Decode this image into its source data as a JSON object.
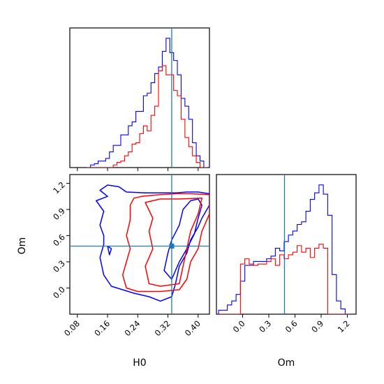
{
  "chart_data": [
    {
      "type": "histogram",
      "panel": "H0 marginal",
      "bins": [
        0.11,
        0.12,
        0.13,
        0.14,
        0.15,
        0.16,
        0.17,
        0.18,
        0.19,
        0.2,
        0.21,
        0.22,
        0.23,
        0.24,
        0.25,
        0.26,
        0.27,
        0.28,
        0.29,
        0.3,
        0.31,
        0.32,
        0.33,
        0.34,
        0.35,
        0.36,
        0.37,
        0.38,
        0.39,
        0.4,
        0.41,
        0.42
      ],
      "series": [
        {
          "color": "#0000ff",
          "values": [
            0,
            0.02,
            0.03,
            0.05,
            0.05,
            0.07,
            0.12,
            0.17,
            0.17,
            0.25,
            0.25,
            0.32,
            0.35,
            0.43,
            0.43,
            0.55,
            0.57,
            0.65,
            0.72,
            0.77,
            0.89,
            0.99,
            0.88,
            0.82,
            0.71,
            0.53,
            0.47,
            0.37,
            0.19,
            0.09,
            0.05,
            0.0
          ]
        },
        {
          "color": "#ff0000",
          "values": [
            0,
            0,
            0,
            0,
            0,
            0,
            0,
            0.02,
            0.04,
            0.05,
            0.09,
            0.12,
            0.18,
            0.19,
            0.26,
            0.32,
            0.28,
            0.4,
            0.47,
            0.74,
            0.78,
            0.71,
            0.71,
            0.59,
            0.55,
            0.37,
            0.23,
            0.16,
            0.09,
            0.04,
            0,
            0
          ]
        }
      ],
      "marker_line": {
        "x": 0.33,
        "color": "#1f77b4"
      },
      "xlim": [
        0.06,
        0.43
      ]
    },
    {
      "type": "contour",
      "panel": "H0 vs Om",
      "xlabel": "H0",
      "ylabel": "Om",
      "xticks": [
        "0.08",
        "0.16",
        "0.24",
        "0.32",
        "0.40"
      ],
      "xtick_values": [
        0.08,
        0.16,
        0.24,
        0.32,
        0.4
      ],
      "yticks": [
        "0.0",
        "0.3",
        "0.6",
        "0.9",
        "1.2"
      ],
      "ytick_values": [
        0.0,
        0.3,
        0.6,
        0.9,
        1.2
      ],
      "xlim": [
        0.06,
        0.43
      ],
      "ylim": [
        -0.3,
        1.3
      ],
      "marker": {
        "x": 0.33,
        "y": 0.48,
        "color": "#1f77b4"
      },
      "contours": [
        {
          "color": "#0000ff",
          "level": "outer",
          "points": [
            [
              0.16,
              1.18
            ],
            [
              0.19,
              1.16
            ],
            [
              0.21,
              1.1
            ],
            [
              0.26,
              1.09
            ],
            [
              0.34,
              1.09
            ],
            [
              0.37,
              1.1
            ],
            [
              0.4,
              1.1
            ],
            [
              0.43,
              1.08
            ],
            [
              0.43,
              0.95
            ],
            [
              0.41,
              0.8
            ],
            [
              0.4,
              0.7
            ],
            [
              0.38,
              0.55
            ],
            [
              0.37,
              0.4
            ],
            [
              0.35,
              0.25
            ],
            [
              0.34,
              0.05
            ],
            [
              0.33,
              -0.1
            ],
            [
              0.3,
              -0.15
            ],
            [
              0.27,
              -0.1
            ],
            [
              0.23,
              -0.06
            ],
            [
              0.2,
              -0.02
            ],
            [
              0.17,
              0.02
            ],
            [
              0.15,
              0.15
            ],
            [
              0.14,
              0.35
            ],
            [
              0.15,
              0.5
            ],
            [
              0.15,
              0.6
            ],
            [
              0.14,
              0.72
            ],
            [
              0.15,
              0.88
            ],
            [
              0.13,
              1.0
            ],
            [
              0.16,
              1.05
            ],
            [
              0.14,
              1.12
            ],
            [
              0.16,
              1.18
            ]
          ]
        },
        {
          "color": "#0000ff",
          "level": "inner",
          "points": [
            [
              0.31,
              0.2
            ],
            [
              0.32,
              0.4
            ],
            [
              0.33,
              0.55
            ],
            [
              0.35,
              0.72
            ],
            [
              0.36,
              0.9
            ],
            [
              0.38,
              1.0
            ],
            [
              0.4,
              1.02
            ],
            [
              0.41,
              0.95
            ],
            [
              0.4,
              0.8
            ],
            [
              0.39,
              0.62
            ],
            [
              0.37,
              0.45
            ],
            [
              0.35,
              0.3
            ],
            [
              0.34,
              0.2
            ],
            [
              0.33,
              0.1
            ],
            [
              0.31,
              0.2
            ]
          ]
        },
        {
          "color": "#0000ff",
          "level": "inner",
          "points": [
            [
              0.16,
              0.48
            ],
            [
              0.165,
              0.38
            ],
            [
              0.17,
              0.45
            ],
            [
              0.16,
              0.48
            ]
          ]
        },
        {
          "color": "#ff0000",
          "level": "outer",
          "points": [
            [
              0.23,
              1.03
            ],
            [
              0.25,
              1.05
            ],
            [
              0.3,
              1.07
            ],
            [
              0.34,
              1.08
            ],
            [
              0.38,
              1.08
            ],
            [
              0.43,
              1.07
            ],
            [
              0.43,
              0.85
            ],
            [
              0.41,
              0.65
            ],
            [
              0.4,
              0.45
            ],
            [
              0.38,
              0.3
            ],
            [
              0.37,
              0.1
            ],
            [
              0.35,
              -0.02
            ],
            [
              0.3,
              -0.04
            ],
            [
              0.24,
              -0.04
            ],
            [
              0.21,
              0.0
            ],
            [
              0.2,
              0.15
            ],
            [
              0.21,
              0.3
            ],
            [
              0.22,
              0.45
            ],
            [
              0.21,
              0.6
            ],
            [
              0.22,
              0.78
            ],
            [
              0.22,
              0.95
            ],
            [
              0.23,
              1.03
            ]
          ]
        },
        {
          "color": "#ff0000",
          "level": "inner",
          "points": [
            [
              0.26,
              0.98
            ],
            [
              0.3,
              1.02
            ],
            [
              0.35,
              1.02
            ],
            [
              0.41,
              1.03
            ],
            [
              0.4,
              0.85
            ],
            [
              0.38,
              0.65
            ],
            [
              0.37,
              0.45
            ],
            [
              0.36,
              0.25
            ],
            [
              0.35,
              0.05
            ],
            [
              0.3,
              0.02
            ],
            [
              0.27,
              0.05
            ],
            [
              0.26,
              0.25
            ],
            [
              0.28,
              0.45
            ],
            [
              0.27,
              0.65
            ],
            [
              0.28,
              0.8
            ],
            [
              0.26,
              0.98
            ]
          ]
        }
      ]
    },
    {
      "type": "histogram",
      "panel": "Om marginal",
      "xlabel": "Om",
      "xticks": [
        "0.0",
        "0.3",
        "0.6",
        "0.9",
        "1.2"
      ],
      "xtick_values": [
        0.0,
        0.3,
        0.6,
        0.9,
        1.2
      ],
      "xlim": [
        -0.3,
        1.3
      ],
      "bins": [
        -0.25,
        -0.2,
        -0.15,
        -0.1,
        -0.05,
        0.0,
        0.05,
        0.1,
        0.15,
        0.2,
        0.25,
        0.3,
        0.35,
        0.4,
        0.45,
        0.5,
        0.55,
        0.6,
        0.65,
        0.7,
        0.75,
        0.8,
        0.85,
        0.9,
        0.95,
        1.0,
        1.05,
        1.1,
        1.15,
        1.2
      ],
      "series": [
        {
          "color": "#0000ff",
          "values": [
            0.03,
            0.03,
            0.07,
            0.1,
            0.15,
            0.25,
            0.37,
            0.37,
            0.4,
            0.4,
            0.4,
            0.42,
            0.44,
            0.5,
            0.48,
            0.55,
            0.6,
            0.63,
            0.68,
            0.7,
            0.78,
            0.87,
            0.92,
            0.98,
            0.91,
            0.75,
            0.3,
            0.1,
            0.04,
            0.0
          ]
        },
        {
          "color": "#ff0000",
          "values": [
            0,
            0,
            0,
            0,
            0,
            0.38,
            0.42,
            0.38,
            0.37,
            0.38,
            0.38,
            0.4,
            0.42,
            0.37,
            0.45,
            0.42,
            0.45,
            0.47,
            0.52,
            0.47,
            0.5,
            0.43,
            0.5,
            0.53,
            0.5,
            0.0,
            0,
            0,
            0,
            0
          ]
        }
      ],
      "marker_line": {
        "x": 0.48,
        "color": "#1f77b4"
      }
    }
  ]
}
